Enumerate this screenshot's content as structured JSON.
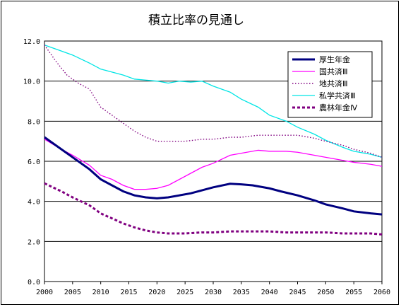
{
  "chart_data": {
    "type": "line",
    "title": "積立比率の見通し",
    "xlabel": "",
    "ylabel": "",
    "xlim": [
      2000,
      2060
    ],
    "ylim": [
      0,
      12
    ],
    "x_ticks": [
      "2000",
      "2005",
      "2010",
      "2015",
      "2020",
      "2025",
      "2030",
      "2035",
      "2040",
      "2045",
      "2050",
      "2055",
      "2060"
    ],
    "y_ticks": [
      "0.0",
      "2.0",
      "4.0",
      "6.0",
      "8.0",
      "10.0",
      "12.0"
    ],
    "grid": "horizontal",
    "legend_position": "top-right",
    "series": [
      {
        "name": "厚生年金",
        "color": "#000080",
        "style": "solid-thick",
        "x": [
          2000,
          2003,
          2005,
          2008,
          2010,
          2012,
          2014,
          2016,
          2018,
          2020,
          2022,
          2024,
          2026,
          2028,
          2030,
          2033,
          2035,
          2037,
          2040,
          2042,
          2045,
          2048,
          2050,
          2053,
          2055,
          2058,
          2060
        ],
        "y": [
          7.2,
          6.6,
          6.2,
          5.6,
          5.1,
          4.8,
          4.5,
          4.3,
          4.2,
          4.15,
          4.2,
          4.3,
          4.4,
          4.55,
          4.7,
          4.88,
          4.85,
          4.8,
          4.65,
          4.5,
          4.3,
          4.05,
          3.85,
          3.65,
          3.5,
          3.4,
          3.35
        ]
      },
      {
        "name": "国共済Ⅲ",
        "color": "#ff00ff",
        "style": "solid",
        "x": [
          2000,
          2003,
          2005,
          2008,
          2010,
          2012,
          2014,
          2016,
          2018,
          2020,
          2022,
          2024,
          2026,
          2028,
          2030,
          2033,
          2035,
          2038,
          2040,
          2043,
          2045,
          2048,
          2050,
          2053,
          2055,
          2058,
          2060
        ],
        "y": [
          7.1,
          6.6,
          6.3,
          5.8,
          5.3,
          5.1,
          4.8,
          4.6,
          4.6,
          4.65,
          4.8,
          5.1,
          5.4,
          5.7,
          5.9,
          6.3,
          6.4,
          6.55,
          6.5,
          6.5,
          6.45,
          6.3,
          6.2,
          6.05,
          5.95,
          5.85,
          5.75
        ]
      },
      {
        "name": "地共済Ⅲ",
        "color": "#800080",
        "style": "dotted",
        "x": [
          2000,
          2002,
          2004,
          2006,
          2008,
          2010,
          2012,
          2014,
          2016,
          2018,
          2020,
          2022,
          2025,
          2028,
          2030,
          2033,
          2035,
          2038,
          2040,
          2043,
          2045,
          2048,
          2050,
          2053,
          2055,
          2058,
          2060
        ],
        "y": [
          11.8,
          11.0,
          10.3,
          9.9,
          9.6,
          8.7,
          8.3,
          7.9,
          7.5,
          7.2,
          7.0,
          7.0,
          7.0,
          7.1,
          7.1,
          7.2,
          7.2,
          7.3,
          7.3,
          7.3,
          7.3,
          7.15,
          7.0,
          6.8,
          6.6,
          6.4,
          6.2
        ]
      },
      {
        "name": "私学共済Ⅲ",
        "color": "#00e5e5",
        "style": "solid",
        "x": [
          2000,
          2003,
          2005,
          2008,
          2010,
          2012,
          2014,
          2016,
          2018,
          2020,
          2022,
          2024,
          2026,
          2028,
          2030,
          2033,
          2035,
          2038,
          2040,
          2043,
          2045,
          2048,
          2050,
          2053,
          2055,
          2058,
          2060
        ],
        "y": [
          11.8,
          11.5,
          11.3,
          10.9,
          10.6,
          10.45,
          10.3,
          10.1,
          10.05,
          10.0,
          9.9,
          10.0,
          9.95,
          10.0,
          9.75,
          9.45,
          9.1,
          8.7,
          8.3,
          8.0,
          7.7,
          7.35,
          7.05,
          6.7,
          6.5,
          6.35,
          6.2
        ]
      },
      {
        "name": "農林年金Ⅳ",
        "color": "#800080",
        "style": "dashed-thick",
        "x": [
          2000,
          2003,
          2005,
          2008,
          2010,
          2012,
          2014,
          2016,
          2018,
          2020,
          2022,
          2025,
          2028,
          2030,
          2033,
          2035,
          2038,
          2040,
          2043,
          2045,
          2048,
          2050,
          2053,
          2055,
          2058,
          2060
        ],
        "y": [
          4.9,
          4.5,
          4.2,
          3.8,
          3.4,
          3.15,
          2.9,
          2.7,
          2.55,
          2.45,
          2.4,
          2.4,
          2.45,
          2.45,
          2.5,
          2.5,
          2.5,
          2.5,
          2.45,
          2.45,
          2.45,
          2.45,
          2.4,
          2.4,
          2.4,
          2.35
        ]
      }
    ]
  }
}
